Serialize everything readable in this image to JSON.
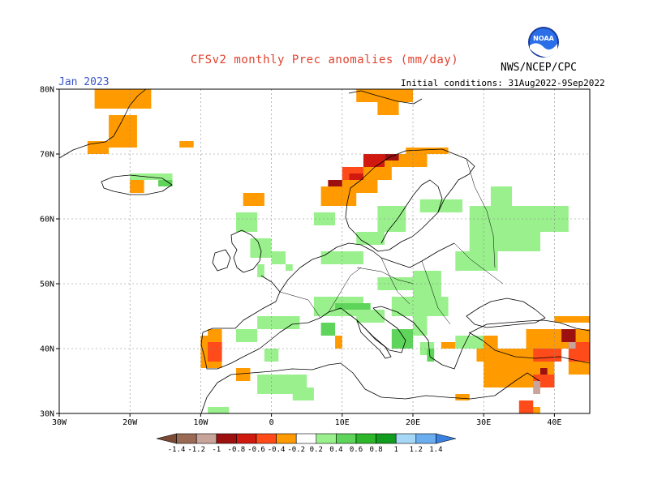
{
  "header": {
    "title": "CFSv2 monthly Prec anomalies (mm/day)",
    "month": "Jan 2023",
    "initial_conditions": "Initial conditions: 31Aug2022-9Sep2022",
    "org": "NWS/NCEP/CPC",
    "logo_text": "NOAA"
  },
  "axes": {
    "x_ticks": [
      "30W",
      "20W",
      "10W",
      "0",
      "10E",
      "20E",
      "30E",
      "40E"
    ],
    "y_ticks": [
      "80N",
      "70N",
      "60N",
      "50N",
      "40N",
      "30N"
    ],
    "lon_range": [
      -30,
      45
    ],
    "lat_range": [
      30,
      80
    ]
  },
  "colorbar": {
    "labels": [
      "-1.4",
      "-1.2",
      "-1",
      "-0.8",
      "-0.6",
      "-0.4",
      "-0.2",
      "0.2",
      "0.4",
      "0.6",
      "0.8",
      "1",
      "1.2",
      "1.4"
    ],
    "bins": [
      {
        "color": "#7a4a35"
      },
      {
        "color": "#9a6a55"
      },
      {
        "color": "#c8a49a"
      },
      {
        "color": "#9c1010"
      },
      {
        "color": "#d01a10"
      },
      {
        "color": "#ff4a1a"
      },
      {
        "color": "#ff9b00"
      },
      {
        "color": "#ffffff"
      },
      {
        "color": "#99f08c"
      },
      {
        "color": "#5fd45a"
      },
      {
        "color": "#2db62a"
      },
      {
        "color": "#119c20"
      },
      {
        "color": "#a6d8f5"
      },
      {
        "color": "#6aaef0"
      },
      {
        "color": "#3a80e0"
      }
    ]
  },
  "anomaly_regions": [
    {
      "level": "-0.2",
      "color": "#ff9b00",
      "cells": [
        [
          -25,
          77,
          8,
          3
        ],
        [
          -23,
          71,
          4,
          5
        ],
        [
          -26,
          70,
          3,
          2
        ],
        [
          -20,
          64,
          2,
          2
        ],
        [
          -13,
          71,
          2,
          1
        ],
        [
          12,
          78,
          8,
          2
        ],
        [
          15,
          76,
          3,
          2
        ],
        [
          7,
          62,
          5,
          3
        ],
        [
          10,
          64,
          5,
          3
        ],
        [
          13,
          66,
          4,
          3
        ],
        [
          17,
          68,
          5,
          2
        ],
        [
          19,
          70,
          6,
          1
        ],
        [
          -4,
          62,
          3,
          2
        ],
        [
          -10,
          37,
          3,
          5
        ],
        [
          -9,
          40,
          2,
          3
        ],
        [
          -5,
          35,
          2,
          2
        ],
        [
          30,
          34,
          10,
          6
        ],
        [
          29,
          38,
          3,
          4
        ],
        [
          36,
          40,
          9,
          3
        ],
        [
          40,
          44,
          5,
          1
        ],
        [
          42,
          36,
          3,
          3
        ],
        [
          24,
          40,
          2,
          1
        ],
        [
          26,
          32,
          2,
          1
        ],
        [
          36,
          30,
          2,
          1
        ],
        [
          9,
          40,
          1,
          2
        ]
      ]
    },
    {
      "level": "-0.4",
      "color": "#ff4a1a",
      "cells": [
        [
          10,
          66,
          3,
          2
        ],
        [
          -9,
          38,
          2,
          3
        ],
        [
          37,
          38,
          4,
          2
        ],
        [
          42,
          38,
          3,
          3
        ],
        [
          37,
          34,
          3,
          2
        ],
        [
          35,
          30,
          2,
          2
        ]
      ]
    },
    {
      "level": "-0.6",
      "color": "#d01a10",
      "cells": [
        [
          13,
          68,
          3,
          2
        ],
        [
          11,
          66,
          2,
          1
        ]
      ]
    },
    {
      "level": "-0.8",
      "color": "#9c1010",
      "cells": [
        [
          16,
          69,
          2,
          1
        ],
        [
          8,
          65,
          2,
          1
        ],
        [
          41,
          41,
          2,
          2
        ],
        [
          38,
          36,
          1,
          1
        ]
      ]
    },
    {
      "level": "-1",
      "color": "#c8a49a",
      "cells": [
        [
          42,
          40,
          1,
          1
        ],
        [
          37,
          33,
          1,
          2
        ]
      ]
    },
    {
      "level": "0.2",
      "color": "#99f08c",
      "cells": [
        [
          15,
          58,
          4,
          4
        ],
        [
          21,
          61,
          6,
          2
        ],
        [
          28,
          58,
          14,
          4
        ],
        [
          28,
          55,
          10,
          3
        ],
        [
          31,
          62,
          3,
          3
        ],
        [
          26,
          52,
          6,
          3
        ],
        [
          7,
          53,
          6,
          2
        ],
        [
          15,
          49,
          5,
          2
        ],
        [
          20,
          48,
          4,
          4
        ],
        [
          17,
          45,
          8,
          3
        ],
        [
          12,
          44,
          4,
          2
        ],
        [
          6,
          45,
          7,
          3
        ],
        [
          -2,
          43,
          6,
          2
        ],
        [
          -5,
          41,
          3,
          2
        ],
        [
          -1,
          38,
          2,
          2
        ],
        [
          -2,
          33,
          7,
          3
        ],
        [
          3,
          32,
          3,
          2
        ],
        [
          -9,
          30,
          3,
          1
        ],
        [
          -5,
          58,
          3,
          3
        ],
        [
          -3,
          54,
          3,
          3
        ],
        [
          0,
          53,
          2,
          2
        ],
        [
          -2,
          51,
          1,
          2
        ],
        [
          2,
          52,
          1,
          1
        ],
        [
          6,
          59,
          3,
          2
        ],
        [
          12,
          56,
          4,
          2
        ],
        [
          20,
          42,
          2,
          3
        ],
        [
          26,
          40,
          4,
          2
        ],
        [
          21,
          39,
          2,
          2
        ],
        [
          -20,
          66,
          6,
          1
        ]
      ]
    },
    {
      "level": "0.4",
      "color": "#5fd45a",
      "cells": [
        [
          9,
          46,
          5,
          1
        ],
        [
          7,
          42,
          2,
          2
        ],
        [
          17,
          40,
          3,
          3
        ],
        [
          22,
          38,
          1,
          2
        ],
        [
          -16,
          65,
          2,
          1
        ]
      ]
    }
  ]
}
